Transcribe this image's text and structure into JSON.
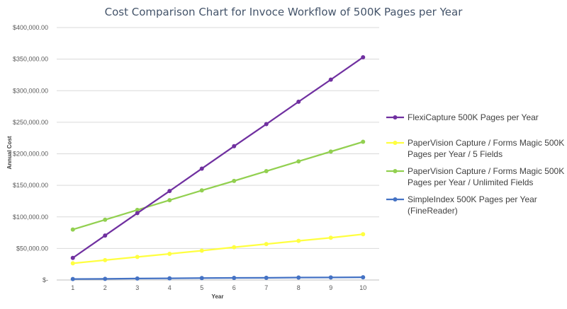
{
  "chart_data": {
    "type": "line",
    "title": "Cost Comparison  Chart for Invoce Workflow  of 500K Pages per Year",
    "xlabel": "Year",
    "ylabel": "Annual Cost",
    "x": [
      1,
      2,
      3,
      4,
      5,
      6,
      7,
      8,
      9,
      10
    ],
    "ylim": [
      0,
      400000
    ],
    "y_ticks": [
      0,
      50000,
      100000,
      150000,
      200000,
      250000,
      300000,
      350000,
      400000
    ],
    "y_tick_labels": [
      "$-",
      "$50,000.00",
      "$100,000.00",
      "$150,000.00",
      "$200,000.00",
      "$250,000.00",
      "$300,000.00",
      "$350,000.00",
      "$400,000.00"
    ],
    "grid": true,
    "legend_position": "right",
    "series": [
      {
        "name": "FlexiCapture 500K Pages per Year",
        "color": "#7030a0",
        "values": [
          35000,
          70500,
          106000,
          141000,
          176500,
          212000,
          247000,
          282500,
          317500,
          353000
        ],
        "legend_lines": [
          "FlexiCapture 500K Pages per Year"
        ]
      },
      {
        "name": "PaperVision Capture / Forms Magic  500K Pages per Year / 5 Fields",
        "color": "#ffff40",
        "values": [
          26500,
          31500,
          36500,
          41500,
          46500,
          52000,
          57000,
          62000,
          67000,
          72500
        ],
        "legend_lines": [
          "PaperVision Capture / Forms Magic  500K",
          "Pages per Year / 5 Fields"
        ]
      },
      {
        "name": "PaperVision Capture / Forms Magic  500K Pages per Year / Unlimited Fields",
        "color": "#92d050",
        "values": [
          80000,
          95500,
          111000,
          126500,
          142000,
          157000,
          172500,
          188000,
          203500,
          219000
        ],
        "legend_lines": [
          "PaperVision Capture / Forms Magic  500K",
          "Pages per Year / Unlimited Fields"
        ]
      },
      {
        "name": "SimpleIndex 500K Pages per Year (FineReader)",
        "color": "#4472c4",
        "values": [
          1500,
          1800,
          2400,
          2600,
          3100,
          3300,
          3500,
          3900,
          4100,
          4300
        ],
        "legend_lines": [
          "SimpleIndex 500K Pages per Year",
          "(FineReader)"
        ]
      }
    ]
  }
}
